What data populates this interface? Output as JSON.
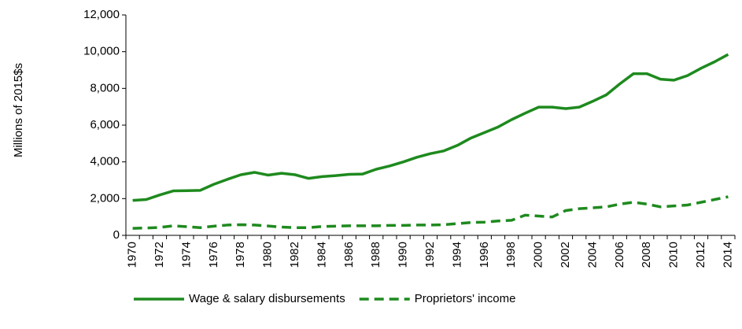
{
  "chart_data": {
    "type": "line",
    "y_label": "Millions of 2015$s",
    "categories": [
      "1970",
      null,
      "1972",
      null,
      "1974",
      null,
      "1976",
      null,
      "1978",
      null,
      "1980",
      null,
      "1982",
      null,
      "1984",
      null,
      "1986",
      null,
      "1988",
      null,
      "1990",
      null,
      "1992",
      null,
      "1994",
      null,
      "1996",
      null,
      "1998",
      null,
      "2000",
      null,
      "2002",
      null,
      "2004",
      null,
      "2006",
      null,
      "2008",
      null,
      "2010",
      null,
      "2012",
      null,
      "2014"
    ],
    "series": [
      {
        "name": "Wage & salary disbursements",
        "color": "#1e8a1e",
        "dash": false,
        "values": [
          1900,
          1950,
          2200,
          2420,
          2430,
          2450,
          2780,
          3050,
          3300,
          3430,
          3280,
          3380,
          3300,
          3100,
          3200,
          3250,
          3320,
          3340,
          3600,
          3780,
          4000,
          4250,
          4450,
          4600,
          4900,
          5300,
          5600,
          5900,
          6300,
          6650,
          6980,
          6980,
          6900,
          6980,
          7300,
          7650,
          8250,
          8800,
          8800,
          8500,
          8450,
          8700,
          9100,
          9450,
          9850
        ]
      },
      {
        "name": "Proprietors' income",
        "color": "#1e8a1e",
        "dash": true,
        "values": [
          380,
          400,
          430,
          520,
          470,
          420,
          500,
          560,
          580,
          560,
          510,
          450,
          420,
          420,
          480,
          500,
          520,
          520,
          520,
          540,
          540,
          560,
          560,
          580,
          640,
          700,
          720,
          780,
          820,
          1100,
          1050,
          1000,
          1350,
          1450,
          1500,
          1550,
          1700,
          1800,
          1700,
          1550,
          1600,
          1650,
          1800,
          1950,
          2100
        ]
      }
    ],
    "ylim": [
      0,
      12000
    ],
    "yticks": [
      0,
      {
        "value": 2000,
        "label": "2,000"
      },
      {
        "value": 4000,
        "label": "4,000"
      },
      {
        "value": 6000,
        "label": "6,000"
      },
      {
        "value": 8000,
        "label": "8,000"
      },
      {
        "value": 10000,
        "label": "10,000"
      },
      {
        "value": 12000,
        "label": "12,000"
      }
    ],
    "grid": false,
    "legend": "bottom"
  }
}
